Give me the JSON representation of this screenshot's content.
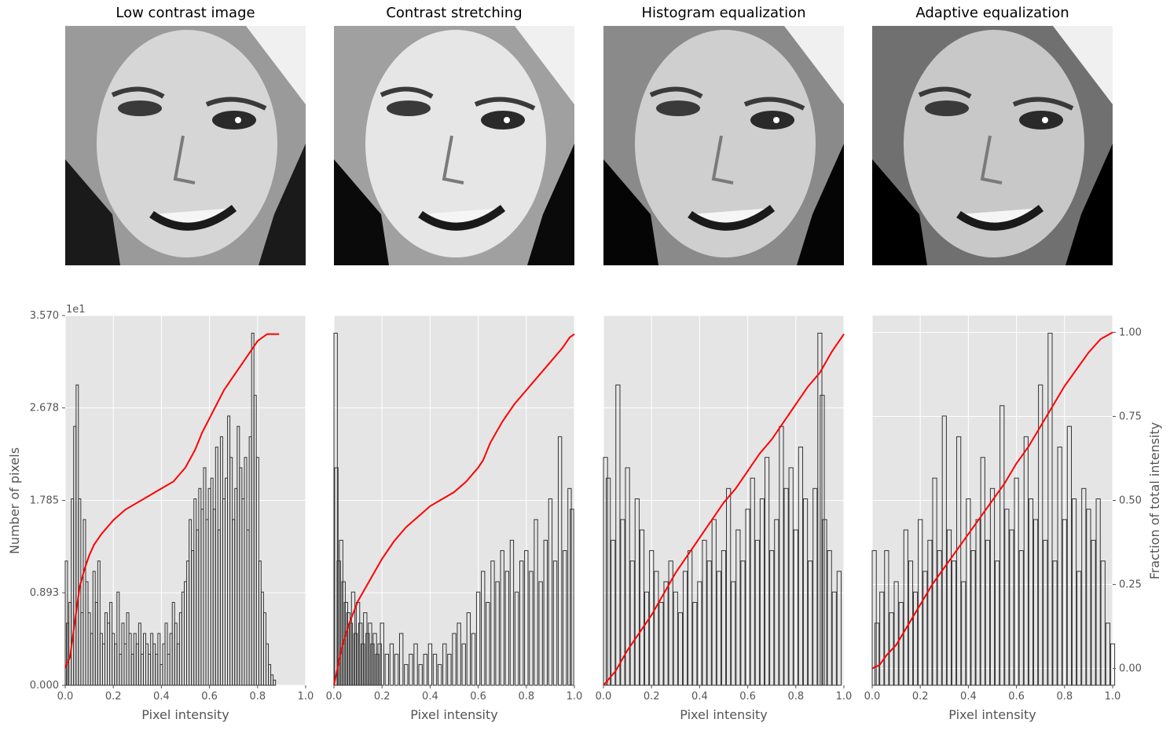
{
  "figure": {
    "panels": [
      {
        "title": "Low contrast image"
      },
      {
        "title": "Contrast stretching"
      },
      {
        "title": "Histogram equalization"
      },
      {
        "title": "Adaptive equalization"
      }
    ],
    "xlabel": "Pixel intensity",
    "left_ylabel": "Number of pixels",
    "right_ylabel": "Fraction of total intensity",
    "offset_label": "1e1",
    "colors": {
      "axes_bg": "#e5e5e5",
      "grid": "#ffffff",
      "bars": "#333333",
      "cdf": "#ff0000",
      "tick_text": "#555555",
      "label_text": "#555555"
    }
  },
  "chart_data": [
    {
      "type": "bar",
      "title": "Low contrast image",
      "xlabel": "Pixel intensity",
      "ylabel": "Number of pixels",
      "xlim": [
        0,
        1
      ],
      "ylim": [
        0,
        3.57
      ],
      "y_offset_multiplier": "1e1",
      "xticks": [
        "0.0",
        "0.2",
        "0.4",
        "0.6",
        "0.8",
        "1.0"
      ],
      "yticks": [
        "0.000",
        "0.893",
        "1.785",
        "2.678",
        "3.570"
      ],
      "grid": true,
      "bars_x": [
        0.0,
        0.01,
        0.02,
        0.03,
        0.04,
        0.05,
        0.06,
        0.07,
        0.08,
        0.09,
        0.1,
        0.11,
        0.12,
        0.13,
        0.14,
        0.15,
        0.16,
        0.17,
        0.18,
        0.19,
        0.2,
        0.21,
        0.22,
        0.23,
        0.24,
        0.25,
        0.26,
        0.27,
        0.28,
        0.29,
        0.3,
        0.31,
        0.32,
        0.33,
        0.34,
        0.35,
        0.36,
        0.37,
        0.38,
        0.39,
        0.4,
        0.41,
        0.42,
        0.43,
        0.44,
        0.45,
        0.46,
        0.47,
        0.48,
        0.49,
        0.5,
        0.51,
        0.52,
        0.53,
        0.54,
        0.55,
        0.56,
        0.57,
        0.58,
        0.59,
        0.6,
        0.61,
        0.62,
        0.63,
        0.64,
        0.65,
        0.66,
        0.67,
        0.68,
        0.69,
        0.7,
        0.71,
        0.72,
        0.73,
        0.74,
        0.75,
        0.76,
        0.77,
        0.78,
        0.79,
        0.8,
        0.81,
        0.82,
        0.83,
        0.84,
        0.85,
        0.86,
        0.87,
        0.88,
        0.89
      ],
      "bar_values": [
        1.2,
        0.6,
        0.8,
        1.8,
        2.5,
        2.9,
        1.8,
        0.7,
        1.6,
        1.0,
        0.7,
        0.5,
        1.1,
        0.8,
        1.2,
        0.5,
        0.4,
        0.7,
        0.6,
        0.8,
        0.5,
        0.4,
        0.9,
        0.3,
        0.6,
        0.4,
        0.7,
        0.5,
        0.3,
        0.5,
        0.4,
        0.6,
        0.3,
        0.5,
        0.4,
        0.3,
        0.5,
        0.4,
        0.3,
        0.5,
        0.2,
        0.4,
        0.6,
        0.3,
        0.5,
        0.8,
        0.6,
        0.4,
        0.7,
        0.9,
        1.0,
        1.2,
        1.6,
        1.3,
        1.8,
        1.5,
        1.9,
        1.7,
        2.1,
        1.6,
        1.9,
        2.0,
        1.7,
        2.3,
        1.5,
        2.4,
        1.8,
        2.0,
        2.6,
        2.2,
        1.6,
        1.9,
        2.5,
        2.1,
        1.8,
        2.2,
        1.5,
        2.4,
        3.4,
        2.8,
        2.2,
        1.2,
        0.9,
        0.7,
        0.4,
        0.2,
        0.1,
        0.05,
        0.0,
        0.0
      ],
      "cdf_x": [
        0.0,
        0.02,
        0.04,
        0.06,
        0.08,
        0.1,
        0.12,
        0.15,
        0.2,
        0.25,
        0.3,
        0.35,
        0.4,
        0.45,
        0.5,
        0.54,
        0.57,
        0.6,
        0.63,
        0.66,
        0.69,
        0.72,
        0.75,
        0.78,
        0.8,
        0.82,
        0.84,
        0.86,
        0.88,
        0.89
      ],
      "cdf_y": [
        0.05,
        0.08,
        0.18,
        0.28,
        0.33,
        0.37,
        0.4,
        0.43,
        0.47,
        0.5,
        0.52,
        0.54,
        0.56,
        0.58,
        0.62,
        0.67,
        0.72,
        0.76,
        0.8,
        0.84,
        0.87,
        0.9,
        0.93,
        0.96,
        0.98,
        0.99,
        1.0,
        1.0,
        1.0,
        1.0
      ]
    },
    {
      "type": "bar",
      "title": "Contrast stretching",
      "xlabel": "Pixel intensity",
      "xlim": [
        0,
        1
      ],
      "ylim": [
        0,
        3.57
      ],
      "xticks": [
        "0.0",
        "0.2",
        "0.4",
        "0.6",
        "0.8",
        "1.0"
      ],
      "grid": true,
      "bars_x": [
        0.0,
        0.01,
        0.02,
        0.03,
        0.04,
        0.05,
        0.06,
        0.07,
        0.08,
        0.09,
        0.1,
        0.11,
        0.12,
        0.13,
        0.14,
        0.15,
        0.16,
        0.17,
        0.18,
        0.19,
        0.2,
        0.22,
        0.24,
        0.26,
        0.28,
        0.3,
        0.32,
        0.34,
        0.36,
        0.38,
        0.4,
        0.42,
        0.44,
        0.46,
        0.48,
        0.5,
        0.52,
        0.54,
        0.56,
        0.58,
        0.6,
        0.62,
        0.64,
        0.66,
        0.68,
        0.7,
        0.72,
        0.74,
        0.76,
        0.78,
        0.8,
        0.82,
        0.84,
        0.86,
        0.88,
        0.9,
        0.92,
        0.94,
        0.96,
        0.98,
        0.99
      ],
      "bar_values": [
        3.4,
        2.1,
        1.2,
        1.4,
        1.0,
        0.8,
        0.7,
        0.6,
        0.9,
        0.5,
        0.8,
        0.6,
        0.4,
        0.7,
        0.5,
        0.6,
        0.4,
        0.5,
        0.3,
        0.4,
        0.6,
        0.3,
        0.4,
        0.3,
        0.5,
        0.2,
        0.3,
        0.4,
        0.2,
        0.3,
        0.4,
        0.3,
        0.2,
        0.4,
        0.3,
        0.5,
        0.6,
        0.4,
        0.7,
        0.5,
        0.9,
        1.1,
        0.8,
        1.2,
        1.0,
        1.3,
        1.1,
        1.4,
        0.9,
        1.2,
        1.3,
        1.1,
        1.6,
        1.0,
        1.4,
        1.8,
        1.2,
        2.4,
        1.3,
        1.9,
        1.7
      ],
      "cdf_x": [
        0.0,
        0.03,
        0.06,
        0.1,
        0.15,
        0.2,
        0.25,
        0.3,
        0.35,
        0.4,
        0.45,
        0.5,
        0.55,
        0.6,
        0.62,
        0.65,
        0.7,
        0.75,
        0.8,
        0.85,
        0.9,
        0.95,
        0.98,
        1.0
      ],
      "cdf_y": [
        0.0,
        0.1,
        0.17,
        0.24,
        0.3,
        0.36,
        0.41,
        0.45,
        0.48,
        0.51,
        0.53,
        0.55,
        0.58,
        0.62,
        0.64,
        0.69,
        0.75,
        0.8,
        0.84,
        0.88,
        0.92,
        0.96,
        0.99,
        1.0
      ]
    },
    {
      "type": "bar",
      "title": "Histogram equalization",
      "xlabel": "Pixel intensity",
      "xlim": [
        0,
        1
      ],
      "ylim": [
        0,
        3.57
      ],
      "xticks": [
        "0.0",
        "0.2",
        "0.4",
        "0.6",
        "0.8",
        "1.0"
      ],
      "grid": true,
      "bars_x": [
        0.0,
        0.02,
        0.04,
        0.06,
        0.08,
        0.1,
        0.12,
        0.14,
        0.16,
        0.18,
        0.2,
        0.22,
        0.24,
        0.26,
        0.28,
        0.3,
        0.32,
        0.34,
        0.36,
        0.38,
        0.4,
        0.42,
        0.44,
        0.46,
        0.48,
        0.5,
        0.52,
        0.54,
        0.56,
        0.58,
        0.6,
        0.62,
        0.64,
        0.66,
        0.68,
        0.7,
        0.72,
        0.74,
        0.76,
        0.78,
        0.8,
        0.82,
        0.84,
        0.86,
        0.88,
        0.9,
        0.91,
        0.92,
        0.94,
        0.96,
        0.98
      ],
      "bar_values": [
        2.2,
        2.0,
        1.4,
        2.9,
        1.6,
        2.1,
        1.2,
        1.8,
        1.5,
        0.9,
        1.3,
        1.1,
        0.8,
        1.0,
        1.2,
        0.9,
        0.7,
        1.1,
        1.3,
        0.8,
        1.0,
        1.4,
        1.2,
        1.6,
        1.1,
        1.3,
        1.9,
        1.0,
        1.5,
        1.2,
        1.7,
        2.0,
        1.4,
        1.8,
        2.2,
        1.3,
        1.6,
        2.5,
        1.9,
        2.1,
        1.5,
        2.3,
        1.8,
        1.2,
        1.9,
        3.4,
        2.8,
        1.6,
        1.3,
        0.9,
        1.1
      ],
      "cdf_x": [
        0.0,
        0.05,
        0.1,
        0.15,
        0.2,
        0.25,
        0.3,
        0.35,
        0.4,
        0.45,
        0.5,
        0.55,
        0.6,
        0.65,
        0.7,
        0.75,
        0.8,
        0.85,
        0.9,
        0.95,
        1.0
      ],
      "cdf_y": [
        0.0,
        0.04,
        0.1,
        0.15,
        0.2,
        0.26,
        0.32,
        0.37,
        0.42,
        0.47,
        0.52,
        0.56,
        0.61,
        0.66,
        0.7,
        0.75,
        0.8,
        0.85,
        0.89,
        0.95,
        1.0
      ]
    },
    {
      "type": "bar",
      "title": "Adaptive equalization",
      "xlabel": "Pixel intensity",
      "ylabel": "Fraction of total intensity",
      "xlim": [
        0,
        1
      ],
      "ylim": [
        0,
        3.57
      ],
      "y2lim": [
        -0.05,
        1.05
      ],
      "xticks": [
        "0.0",
        "0.2",
        "0.4",
        "0.6",
        "0.8",
        "1.0"
      ],
      "y2ticks": [
        "0.00",
        "0.25",
        "0.50",
        "0.75",
        "1.00"
      ],
      "grid": true,
      "bars_x": [
        0.0,
        0.02,
        0.04,
        0.06,
        0.08,
        0.1,
        0.12,
        0.14,
        0.16,
        0.18,
        0.2,
        0.22,
        0.24,
        0.26,
        0.28,
        0.3,
        0.32,
        0.34,
        0.36,
        0.38,
        0.4,
        0.42,
        0.44,
        0.46,
        0.48,
        0.5,
        0.52,
        0.54,
        0.56,
        0.58,
        0.6,
        0.62,
        0.64,
        0.66,
        0.68,
        0.7,
        0.72,
        0.74,
        0.76,
        0.78,
        0.8,
        0.82,
        0.84,
        0.86,
        0.88,
        0.9,
        0.92,
        0.94,
        0.96,
        0.98,
        1.0
      ],
      "bar_values": [
        1.3,
        0.6,
        0.9,
        1.3,
        0.7,
        1.0,
        0.8,
        1.5,
        1.2,
        0.9,
        1.6,
        1.1,
        1.4,
        2.0,
        1.3,
        2.6,
        1.5,
        1.2,
        2.4,
        1.0,
        1.8,
        1.3,
        1.6,
        2.2,
        1.4,
        1.9,
        1.2,
        2.7,
        1.7,
        1.5,
        2.0,
        1.3,
        2.4,
        1.8,
        1.6,
        2.9,
        1.4,
        3.4,
        1.2,
        2.3,
        1.6,
        2.5,
        1.8,
        1.1,
        1.9,
        1.7,
        1.4,
        1.8,
        1.2,
        0.6,
        0.4
      ],
      "cdf_x": [
        0.0,
        0.03,
        0.06,
        0.1,
        0.15,
        0.2,
        0.25,
        0.3,
        0.35,
        0.4,
        0.45,
        0.5,
        0.55,
        0.6,
        0.65,
        0.7,
        0.75,
        0.8,
        0.85,
        0.9,
        0.95,
        1.0
      ],
      "cdf_y": [
        0.0,
        0.01,
        0.04,
        0.07,
        0.13,
        0.19,
        0.25,
        0.3,
        0.35,
        0.4,
        0.45,
        0.5,
        0.55,
        0.61,
        0.66,
        0.72,
        0.78,
        0.84,
        0.89,
        0.94,
        0.98,
        1.0
      ]
    }
  ]
}
